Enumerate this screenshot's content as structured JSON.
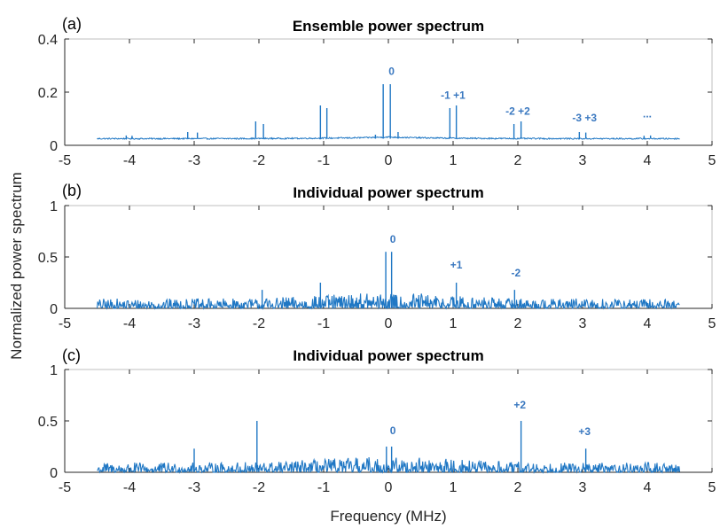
{
  "ylabel": "Normalized power spectrum",
  "xlabel": "Frequency (MHz)",
  "colors": {
    "line": "#1f77c4",
    "annotation": "#3a78c0",
    "axis": "#262626",
    "frame": "#bfbfbf"
  },
  "chart_data": [
    {
      "type": "line",
      "panel_label": "(a)",
      "title": "Ensemble power spectrum",
      "xlabel": "Frequency (MHz)",
      "ylabel": "Normalized power spectrum",
      "xlim": [
        -5,
        5
      ],
      "ylim": [
        0,
        0.4
      ],
      "xticks": [
        -5,
        -4,
        -3,
        -2,
        -1,
        0,
        1,
        2,
        3,
        4,
        5
      ],
      "yticks": [
        0,
        0.2,
        0.4
      ],
      "ytick_labels": [
        "0",
        "0.2",
        "0.4"
      ],
      "grid": false,
      "x_range": [
        -4.5,
        4.5
      ],
      "baseline": 0.025,
      "noise": 0.0025,
      "peaks": [
        {
          "x": -4.05,
          "y": 0.037
        },
        {
          "x": -3.96,
          "y": 0.036
        },
        {
          "x": -3.1,
          "y": 0.05
        },
        {
          "x": -2.95,
          "y": 0.048
        },
        {
          "x": -2.05,
          "y": 0.09
        },
        {
          "x": -1.93,
          "y": 0.08
        },
        {
          "x": -1.05,
          "y": 0.15
        },
        {
          "x": -0.95,
          "y": 0.14
        },
        {
          "x": -0.08,
          "y": 0.23
        },
        {
          "x": 0.03,
          "y": 0.23
        },
        {
          "x": -0.2,
          "y": 0.04
        },
        {
          "x": 0.15,
          "y": 0.05
        },
        {
          "x": 0.95,
          "y": 0.14
        },
        {
          "x": 1.05,
          "y": 0.15
        },
        {
          "x": 1.94,
          "y": 0.08
        },
        {
          "x": 2.05,
          "y": 0.09
        },
        {
          "x": 2.95,
          "y": 0.05
        },
        {
          "x": 3.05,
          "y": 0.048
        },
        {
          "x": 3.95,
          "y": 0.036
        },
        {
          "x": 4.05,
          "y": 0.037
        }
      ],
      "annotations": [
        {
          "text": "0",
          "x": 0.05,
          "y": 0.265
        },
        {
          "text": "-1 +1",
          "x": 1.0,
          "y": 0.175
        },
        {
          "text": "-2 +2",
          "x": 2.0,
          "y": 0.115
        },
        {
          "text": "-3 +3",
          "x": 3.03,
          "y": 0.09
        },
        {
          "text": "...",
          "x": 4.0,
          "y": 0.105
        }
      ]
    },
    {
      "type": "line",
      "panel_label": "(b)",
      "title": "Individual power spectrum",
      "xlabel": "Frequency (MHz)",
      "ylabel": "Normalized power spectrum",
      "xlim": [
        -5,
        5
      ],
      "ylim": [
        0,
        1
      ],
      "xticks": [
        -5,
        -4,
        -3,
        -2,
        -1,
        0,
        1,
        2,
        3,
        4,
        5
      ],
      "yticks": [
        0,
        0.5,
        1
      ],
      "ytick_labels": [
        "0",
        "0.5",
        "1"
      ],
      "grid": false,
      "x_range": [
        -4.5,
        4.5
      ],
      "baseline": 0.0,
      "noise": 0.05,
      "peaks": [
        {
          "x": -0.04,
          "y": 0.55
        },
        {
          "x": 0.05,
          "y": 0.55
        },
        {
          "x": 0.12,
          "y": 0.13
        },
        {
          "x": 1.05,
          "y": 0.25
        },
        {
          "x": 1.95,
          "y": 0.18
        },
        {
          "x": -1.05,
          "y": 0.25
        },
        {
          "x": -1.95,
          "y": 0.18
        }
      ],
      "annotations": [
        {
          "text": "0",
          "x": 0.07,
          "y": 0.64
        },
        {
          "text": "+1",
          "x": 1.05,
          "y": 0.39
        },
        {
          "text": "-2",
          "x": 1.97,
          "y": 0.31
        }
      ]
    },
    {
      "type": "line",
      "panel_label": "(c)",
      "title": "Individual power spectrum",
      "xlabel": "Frequency (MHz)",
      "ylabel": "Normalized power spectrum",
      "xlim": [
        -5,
        5
      ],
      "ylim": [
        0,
        1
      ],
      "xticks": [
        -5,
        -4,
        -3,
        -2,
        -1,
        0,
        1,
        2,
        3,
        4,
        5
      ],
      "yticks": [
        0,
        0.5,
        1
      ],
      "ytick_labels": [
        "0",
        "0.5",
        "1"
      ],
      "grid": false,
      "x_range": [
        -4.5,
        4.5
      ],
      "baseline": 0.0,
      "noise": 0.05,
      "peaks": [
        {
          "x": -2.03,
          "y": 0.5
        },
        {
          "x": -3.0,
          "y": 0.23
        },
        {
          "x": 2.05,
          "y": 0.5
        },
        {
          "x": 3.05,
          "y": 0.23
        },
        {
          "x": -0.03,
          "y": 0.25
        },
        {
          "x": 0.05,
          "y": 0.25
        }
      ],
      "annotations": [
        {
          "text": "0",
          "x": 0.07,
          "y": 0.37
        },
        {
          "text": "+2",
          "x": 2.03,
          "y": 0.62
        },
        {
          "text": "+3",
          "x": 3.03,
          "y": 0.36
        }
      ]
    }
  ]
}
